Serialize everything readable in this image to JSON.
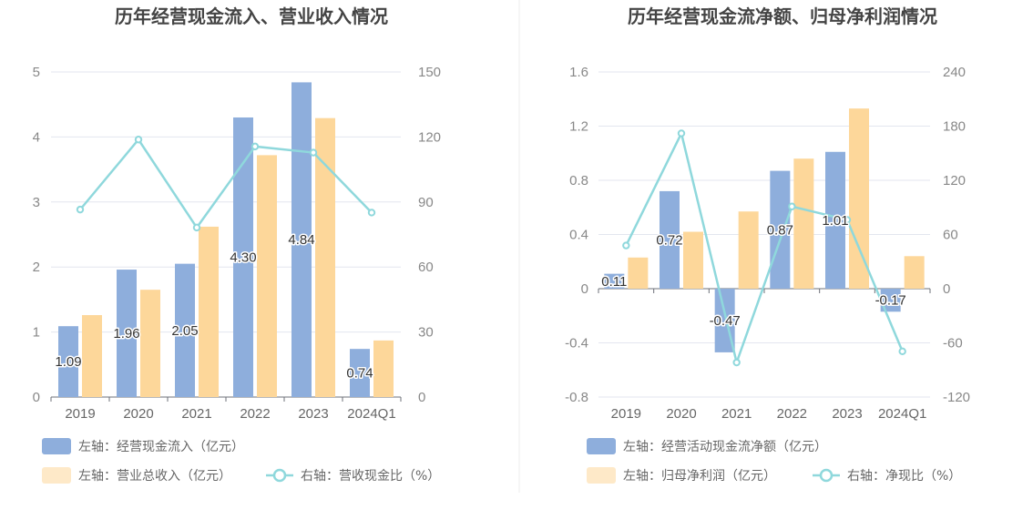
{
  "chart_data": [
    {
      "type": "bar",
      "title": "历年经营现金流入、营业收入情况",
      "categories": [
        "2019",
        "2020",
        "2021",
        "2022",
        "2023",
        "2024Q1"
      ],
      "left_axis": {
        "range": [
          0,
          5
        ],
        "ticks": [
          "0",
          "1",
          "2",
          "3",
          "4",
          "5"
        ]
      },
      "right_axis": {
        "range": [
          0,
          150
        ],
        "ticks": [
          "0",
          "30",
          "60",
          "90",
          "120",
          "150"
        ]
      },
      "grid": true,
      "legend_position": "bottom",
      "series": [
        {
          "name": "左轴：经营现金流入（亿元）",
          "kind": "bar",
          "axis": "left",
          "color": "#8eaedc",
          "values": [
            1.09,
            1.96,
            2.05,
            4.3,
            4.84,
            0.74
          ],
          "labels": [
            "1.09",
            "1.96",
            "2.05",
            "4.30",
            "4.84",
            "0.74"
          ]
        },
        {
          "name": "左轴：营业总收入（亿元）",
          "kind": "bar",
          "axis": "left",
          "color": "#fdd79a",
          "values": [
            1.26,
            1.65,
            2.62,
            3.72,
            4.29,
            0.87
          ]
        },
        {
          "name": "右轴：营收现金比（%）",
          "kind": "line",
          "axis": "right",
          "color": "#8fd8dc",
          "values": [
            86.5,
            118.8,
            78.2,
            115.6,
            112.8,
            85.1
          ]
        }
      ]
    },
    {
      "type": "bar",
      "title": "历年经营现金流净额、归母净利润情况",
      "categories": [
        "2019",
        "2020",
        "2021",
        "2022",
        "2023",
        "2024Q1"
      ],
      "left_axis": {
        "range": [
          -0.8,
          1.6
        ],
        "ticks": [
          "-0.8",
          "-0.4",
          "0",
          "0.4",
          "0.8",
          "1.2",
          "1.6"
        ]
      },
      "right_axis": {
        "range": [
          -120,
          240
        ],
        "ticks": [
          "-120",
          "-60",
          "0",
          "60",
          "120",
          "180",
          "240"
        ]
      },
      "grid": true,
      "legend_position": "bottom",
      "series": [
        {
          "name": "左轴：经营活动现金流净额（亿元）",
          "kind": "bar",
          "axis": "left",
          "color": "#8eaedc",
          "values": [
            0.11,
            0.72,
            -0.47,
            0.87,
            1.01,
            -0.17
          ],
          "labels": [
            "0.11",
            "0.72",
            "-0.47",
            "0.87",
            "1.01",
            "-0.17"
          ]
        },
        {
          "name": "左轴：归母净利润（亿元）",
          "kind": "bar",
          "axis": "left",
          "color": "#fdd79a",
          "values": [
            0.23,
            0.42,
            0.57,
            0.96,
            1.33,
            0.24
          ]
        },
        {
          "name": "右轴：净现比（%）",
          "kind": "line",
          "axis": "right",
          "color": "#8fd8dc",
          "values": [
            47.8,
            172.0,
            -81.7,
            91.0,
            76.2,
            -69.4
          ]
        }
      ]
    }
  ]
}
